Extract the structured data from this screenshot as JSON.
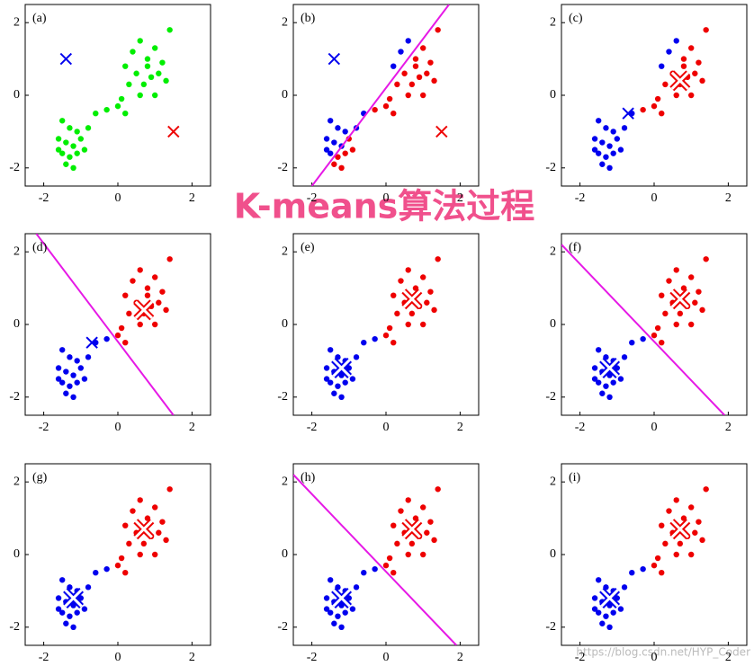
{
  "title": "K-means算法过程",
  "watermark": "https://blog.csdn.net/HYP_Coder",
  "chart_data": [
    {
      "type": "scatter",
      "label": "(a)",
      "xlim": [
        -2.5,
        2.5
      ],
      "ylim": [
        -2.5,
        2.5
      ],
      "xticks": [
        -2,
        0,
        2
      ],
      "yticks": [
        -2,
        0,
        2
      ],
      "series": [
        {
          "color": "#00ee00",
          "x": [
            -1.5,
            -1.3,
            -1.1,
            -1.6,
            -1.4,
            -1.2,
            -1.0,
            -1.5,
            -1.3,
            -1.1,
            -1.4,
            -1.2,
            -0.9,
            -1.6,
            -0.8,
            -0.6,
            -0.3,
            0.0,
            0.2,
            0.1,
            0.2,
            0.4,
            0.6,
            0.8,
            1.0,
            1.2,
            0.5,
            0.7,
            0.9,
            1.1,
            0.3,
            0.6,
            1.0,
            1.3,
            0.8,
            1.4
          ],
          "y": [
            -0.7,
            -0.9,
            -1.0,
            -1.2,
            -1.3,
            -1.4,
            -1.2,
            -1.6,
            -1.7,
            -1.6,
            -1.9,
            -2.0,
            -1.5,
            -1.5,
            -0.9,
            -0.5,
            -0.4,
            -0.3,
            -0.5,
            -0.1,
            0.8,
            1.2,
            1.5,
            1.0,
            1.3,
            0.9,
            0.6,
            0.3,
            0.5,
            0.6,
            0.3,
            0.0,
            0.0,
            0.4,
            0.8,
            1.8
          ]
        }
      ],
      "centroids": [
        {
          "color": "#0000ee",
          "style": "cross",
          "x": -1.4,
          "y": 1.0
        },
        {
          "color": "#ee0000",
          "style": "cross",
          "x": 1.5,
          "y": -1.0
        }
      ]
    },
    {
      "type": "scatter",
      "label": "(b)",
      "xlim": [
        -2.5,
        2.5
      ],
      "ylim": [
        -2.5,
        2.5
      ],
      "xticks": [
        -2,
        0,
        2
      ],
      "yticks": [
        -2,
        0,
        2
      ],
      "series": [
        {
          "color": "#0000ee",
          "x": [
            -1.5,
            -1.3,
            -1.1,
            -1.6,
            -1.4,
            -1.2,
            -1.5,
            -1.6,
            -0.8,
            -0.6,
            0.2,
            0.4,
            0.6
          ],
          "y": [
            -0.7,
            -0.9,
            -1.0,
            -1.2,
            -1.3,
            -1.4,
            -1.6,
            -1.5,
            -0.9,
            -0.5,
            0.8,
            1.2,
            1.5
          ]
        },
        {
          "color": "#ee0000",
          "x": [
            -1.0,
            -1.3,
            -1.1,
            -1.4,
            -1.2,
            -0.9,
            -0.3,
            0.0,
            0.2,
            0.1,
            0.8,
            1.0,
            1.2,
            0.5,
            0.7,
            0.9,
            1.1,
            0.3,
            0.6,
            1.0,
            1.3,
            0.8,
            1.4
          ],
          "y": [
            -1.2,
            -1.7,
            -1.6,
            -1.9,
            -2.0,
            -1.5,
            -0.4,
            -0.3,
            -0.5,
            -0.1,
            1.0,
            1.3,
            0.9,
            0.6,
            0.3,
            0.5,
            0.6,
            0.3,
            0.0,
            0.0,
            0.4,
            0.8,
            1.8
          ]
        }
      ],
      "boundary": {
        "color": "#e619e6",
        "x": [
          -2.0,
          1.7
        ],
        "y": [
          -2.5,
          2.5
        ]
      },
      "centroids": [
        {
          "color": "#0000ee",
          "style": "cross",
          "x": -1.4,
          "y": 1.0
        },
        {
          "color": "#ee0000",
          "style": "cross",
          "x": 1.5,
          "y": -1.0
        }
      ]
    },
    {
      "type": "scatter",
      "label": "(c)",
      "xlim": [
        -2.5,
        2.5
      ],
      "ylim": [
        -2.5,
        2.5
      ],
      "xticks": [
        -2,
        0,
        2
      ],
      "yticks": [
        -2,
        0,
        2
      ],
      "series": [
        {
          "color": "#0000ee",
          "x": [
            -1.5,
            -1.3,
            -1.1,
            -1.6,
            -1.4,
            -1.2,
            -1.0,
            -1.5,
            -1.3,
            -1.1,
            -1.4,
            -1.2,
            -0.9,
            -1.6,
            -0.8,
            -0.6,
            0.2,
            0.4,
            0.6
          ],
          "y": [
            -0.7,
            -0.9,
            -1.0,
            -1.2,
            -1.3,
            -1.4,
            -1.2,
            -1.6,
            -1.7,
            -1.6,
            -1.9,
            -2.0,
            -1.5,
            -1.5,
            -0.9,
            -0.5,
            0.8,
            1.2,
            1.5
          ]
        },
        {
          "color": "#ee0000",
          "x": [
            -0.3,
            0.0,
            0.2,
            0.1,
            0.8,
            1.0,
            1.2,
            0.5,
            0.7,
            0.9,
            1.1,
            0.3,
            0.6,
            1.0,
            1.3,
            0.8,
            1.4
          ],
          "y": [
            -0.4,
            -0.3,
            -0.5,
            -0.1,
            1.0,
            1.3,
            0.9,
            0.6,
            0.3,
            0.5,
            0.6,
            0.3,
            0.0,
            0.0,
            0.4,
            0.8,
            1.8
          ]
        }
      ],
      "centroids": [
        {
          "color": "#0000ee",
          "style": "cross",
          "x": -0.7,
          "y": -0.5
        },
        {
          "color": "#ee0000",
          "style": "big",
          "x": 0.7,
          "y": 0.4
        }
      ]
    },
    {
      "type": "scatter",
      "label": "(d)",
      "xlim": [
        -2.5,
        2.5
      ],
      "ylim": [
        -2.5,
        2.5
      ],
      "xticks": [
        -2,
        0,
        2
      ],
      "yticks": [
        -2,
        0,
        2
      ],
      "series": [
        {
          "color": "#0000ee",
          "x": [
            -1.5,
            -1.3,
            -1.1,
            -1.6,
            -1.4,
            -1.2,
            -1.0,
            -1.5,
            -1.3,
            -1.1,
            -1.4,
            -1.2,
            -0.9,
            -1.6,
            -0.8,
            -0.6,
            -0.3
          ],
          "y": [
            -0.7,
            -0.9,
            -1.0,
            -1.2,
            -1.3,
            -1.4,
            -1.2,
            -1.6,
            -1.7,
            -1.6,
            -1.9,
            -2.0,
            -1.5,
            -1.5,
            -0.9,
            -0.5,
            -0.4
          ]
        },
        {
          "color": "#ee0000",
          "x": [
            0.0,
            0.2,
            0.1,
            0.2,
            0.4,
            0.6,
            0.8,
            1.0,
            1.2,
            0.5,
            0.7,
            0.9,
            1.1,
            0.3,
            0.6,
            1.0,
            1.3,
            0.8,
            1.4
          ],
          "y": [
            -0.3,
            -0.5,
            -0.1,
            0.8,
            1.2,
            1.5,
            1.0,
            1.3,
            0.9,
            0.6,
            0.3,
            0.5,
            0.6,
            0.3,
            0.0,
            0.0,
            0.4,
            0.8,
            1.8
          ]
        }
      ],
      "boundary": {
        "color": "#e619e6",
        "x": [
          -2.2,
          1.5
        ],
        "y": [
          2.5,
          -2.5
        ]
      },
      "centroids": [
        {
          "color": "#0000ee",
          "style": "cross",
          "x": -0.7,
          "y": -0.5
        },
        {
          "color": "#ee0000",
          "style": "big",
          "x": 0.7,
          "y": 0.4
        }
      ]
    },
    {
      "type": "scatter",
      "label": "(e)",
      "xlim": [
        -2.5,
        2.5
      ],
      "ylim": [
        -2.5,
        2.5
      ],
      "xticks": [
        -2,
        0,
        2
      ],
      "yticks": [
        -2,
        0,
        2
      ],
      "series": [
        {
          "color": "#0000ee",
          "x": [
            -1.5,
            -1.3,
            -1.1,
            -1.6,
            -1.4,
            -1.2,
            -1.0,
            -1.5,
            -1.3,
            -1.1,
            -1.4,
            -1.2,
            -0.9,
            -1.6,
            -0.8,
            -0.6,
            -0.3
          ],
          "y": [
            -0.7,
            -0.9,
            -1.0,
            -1.2,
            -1.3,
            -1.4,
            -1.2,
            -1.6,
            -1.7,
            -1.6,
            -1.9,
            -2.0,
            -1.5,
            -1.5,
            -0.9,
            -0.5,
            -0.4
          ]
        },
        {
          "color": "#ee0000",
          "x": [
            0.0,
            0.2,
            0.1,
            0.2,
            0.4,
            0.6,
            0.8,
            1.0,
            1.2,
            0.5,
            0.7,
            0.9,
            1.1,
            0.3,
            0.6,
            1.0,
            1.3,
            0.8,
            1.4
          ],
          "y": [
            -0.3,
            -0.5,
            -0.1,
            0.8,
            1.2,
            1.5,
            1.0,
            1.3,
            0.9,
            0.6,
            0.3,
            0.5,
            0.6,
            0.3,
            0.0,
            0.0,
            0.4,
            0.8,
            1.8
          ]
        }
      ],
      "centroids": [
        {
          "color": "#0000ee",
          "style": "big",
          "x": -1.2,
          "y": -1.2
        },
        {
          "color": "#ee0000",
          "style": "big",
          "x": 0.7,
          "y": 0.7
        }
      ]
    },
    {
      "type": "scatter",
      "label": "(f)",
      "xlim": [
        -2.5,
        2.5
      ],
      "ylim": [
        -2.5,
        2.5
      ],
      "xticks": [
        -2,
        0,
        2
      ],
      "yticks": [
        -2,
        0,
        2
      ],
      "series": [
        {
          "color": "#0000ee",
          "x": [
            -1.5,
            -1.3,
            -1.1,
            -1.6,
            -1.4,
            -1.2,
            -1.0,
            -1.5,
            -1.3,
            -1.1,
            -1.4,
            -1.2,
            -0.9,
            -1.6,
            -0.8,
            -0.6,
            -0.3
          ],
          "y": [
            -0.7,
            -0.9,
            -1.0,
            -1.2,
            -1.3,
            -1.4,
            -1.2,
            -1.6,
            -1.7,
            -1.6,
            -1.9,
            -2.0,
            -1.5,
            -1.5,
            -0.9,
            -0.5,
            -0.4
          ]
        },
        {
          "color": "#ee0000",
          "x": [
            0.0,
            0.2,
            0.1,
            0.2,
            0.4,
            0.6,
            0.8,
            1.0,
            1.2,
            0.5,
            0.7,
            0.9,
            1.1,
            0.3,
            0.6,
            1.0,
            1.3,
            0.8,
            1.4
          ],
          "y": [
            -0.3,
            -0.5,
            -0.1,
            0.8,
            1.2,
            1.5,
            1.0,
            1.3,
            0.9,
            0.6,
            0.3,
            0.5,
            0.6,
            0.3,
            0.0,
            0.0,
            0.4,
            0.8,
            1.8
          ]
        }
      ],
      "boundary": {
        "color": "#e619e6",
        "x": [
          -2.5,
          1.9
        ],
        "y": [
          2.2,
          -2.5
        ]
      },
      "centroids": [
        {
          "color": "#0000ee",
          "style": "big",
          "x": -1.2,
          "y": -1.2
        },
        {
          "color": "#ee0000",
          "style": "big",
          "x": 0.7,
          "y": 0.7
        }
      ]
    },
    {
      "type": "scatter",
      "label": "(g)",
      "xlim": [
        -2.5,
        2.5
      ],
      "ylim": [
        -2.5,
        2.5
      ],
      "xticks": [
        -2,
        0,
        2
      ],
      "yticks": [
        -2,
        0,
        2
      ],
      "series": [
        {
          "color": "#0000ee",
          "x": [
            -1.5,
            -1.3,
            -1.1,
            -1.6,
            -1.4,
            -1.2,
            -1.0,
            -1.5,
            -1.3,
            -1.1,
            -1.4,
            -1.2,
            -0.9,
            -1.6,
            -0.8,
            -0.6,
            -0.3
          ],
          "y": [
            -0.7,
            -0.9,
            -1.0,
            -1.2,
            -1.3,
            -1.4,
            -1.2,
            -1.6,
            -1.7,
            -1.6,
            -1.9,
            -2.0,
            -1.5,
            -1.5,
            -0.9,
            -0.5,
            -0.4
          ]
        },
        {
          "color": "#ee0000",
          "x": [
            0.0,
            0.2,
            0.1,
            0.2,
            0.4,
            0.6,
            0.8,
            1.0,
            1.2,
            0.5,
            0.7,
            0.9,
            1.1,
            0.3,
            0.6,
            1.0,
            1.3,
            0.8,
            1.4
          ],
          "y": [
            -0.3,
            -0.5,
            -0.1,
            0.8,
            1.2,
            1.5,
            1.0,
            1.3,
            0.9,
            0.6,
            0.3,
            0.5,
            0.6,
            0.3,
            0.0,
            0.0,
            0.4,
            0.8,
            1.8
          ]
        }
      ],
      "centroids": [
        {
          "color": "#0000ee",
          "style": "big",
          "x": -1.2,
          "y": -1.2
        },
        {
          "color": "#ee0000",
          "style": "big",
          "x": 0.7,
          "y": 0.7
        }
      ]
    },
    {
      "type": "scatter",
      "label": "(h)",
      "xlim": [
        -2.5,
        2.5
      ],
      "ylim": [
        -2.5,
        2.5
      ],
      "xticks": [
        -2,
        0,
        2
      ],
      "yticks": [
        -2,
        0,
        2
      ],
      "series": [
        {
          "color": "#0000ee",
          "x": [
            -1.5,
            -1.3,
            -1.1,
            -1.6,
            -1.4,
            -1.2,
            -1.0,
            -1.5,
            -1.3,
            -1.1,
            -1.4,
            -1.2,
            -0.9,
            -1.6,
            -0.8,
            -0.6,
            -0.3
          ],
          "y": [
            -0.7,
            -0.9,
            -1.0,
            -1.2,
            -1.3,
            -1.4,
            -1.2,
            -1.6,
            -1.7,
            -1.6,
            -1.9,
            -2.0,
            -1.5,
            -1.5,
            -0.9,
            -0.5,
            -0.4
          ]
        },
        {
          "color": "#ee0000",
          "x": [
            0.0,
            0.2,
            0.1,
            0.2,
            0.4,
            0.6,
            0.8,
            1.0,
            1.2,
            0.5,
            0.7,
            0.9,
            1.1,
            0.3,
            0.6,
            1.0,
            1.3,
            0.8,
            1.4
          ],
          "y": [
            -0.3,
            -0.5,
            -0.1,
            0.8,
            1.2,
            1.5,
            1.0,
            1.3,
            0.9,
            0.6,
            0.3,
            0.5,
            0.6,
            0.3,
            0.0,
            0.0,
            0.4,
            0.8,
            1.8
          ]
        }
      ],
      "boundary": {
        "color": "#e619e6",
        "x": [
          -2.5,
          1.9
        ],
        "y": [
          2.2,
          -2.5
        ]
      },
      "centroids": [
        {
          "color": "#0000ee",
          "style": "big",
          "x": -1.2,
          "y": -1.2
        },
        {
          "color": "#ee0000",
          "style": "big",
          "x": 0.7,
          "y": 0.7
        }
      ]
    },
    {
      "type": "scatter",
      "label": "(i)",
      "xlim": [
        -2.5,
        2.5
      ],
      "ylim": [
        -2.5,
        2.5
      ],
      "xticks": [
        -2,
        0,
        2
      ],
      "yticks": [
        -2,
        0,
        2
      ],
      "series": [
        {
          "color": "#0000ee",
          "x": [
            -1.5,
            -1.3,
            -1.1,
            -1.6,
            -1.4,
            -1.2,
            -1.0,
            -1.5,
            -1.3,
            -1.1,
            -1.4,
            -1.2,
            -0.9,
            -1.6,
            -0.8,
            -0.6,
            -0.3
          ],
          "y": [
            -0.7,
            -0.9,
            -1.0,
            -1.2,
            -1.3,
            -1.4,
            -1.2,
            -1.6,
            -1.7,
            -1.6,
            -1.9,
            -2.0,
            -1.5,
            -1.5,
            -0.9,
            -0.5,
            -0.4
          ]
        },
        {
          "color": "#ee0000",
          "x": [
            0.0,
            0.2,
            0.1,
            0.2,
            0.4,
            0.6,
            0.8,
            1.0,
            1.2,
            0.5,
            0.7,
            0.9,
            1.1,
            0.3,
            0.6,
            1.0,
            1.3,
            0.8,
            1.4
          ],
          "y": [
            -0.3,
            -0.5,
            -0.1,
            0.8,
            1.2,
            1.5,
            1.0,
            1.3,
            0.9,
            0.6,
            0.3,
            0.5,
            0.6,
            0.3,
            0.0,
            0.0,
            0.4,
            0.8,
            1.8
          ]
        }
      ],
      "centroids": [
        {
          "color": "#0000ee",
          "style": "big",
          "x": -1.2,
          "y": -1.2
        },
        {
          "color": "#ee0000",
          "style": "big",
          "x": 0.7,
          "y": 0.7
        }
      ]
    }
  ]
}
